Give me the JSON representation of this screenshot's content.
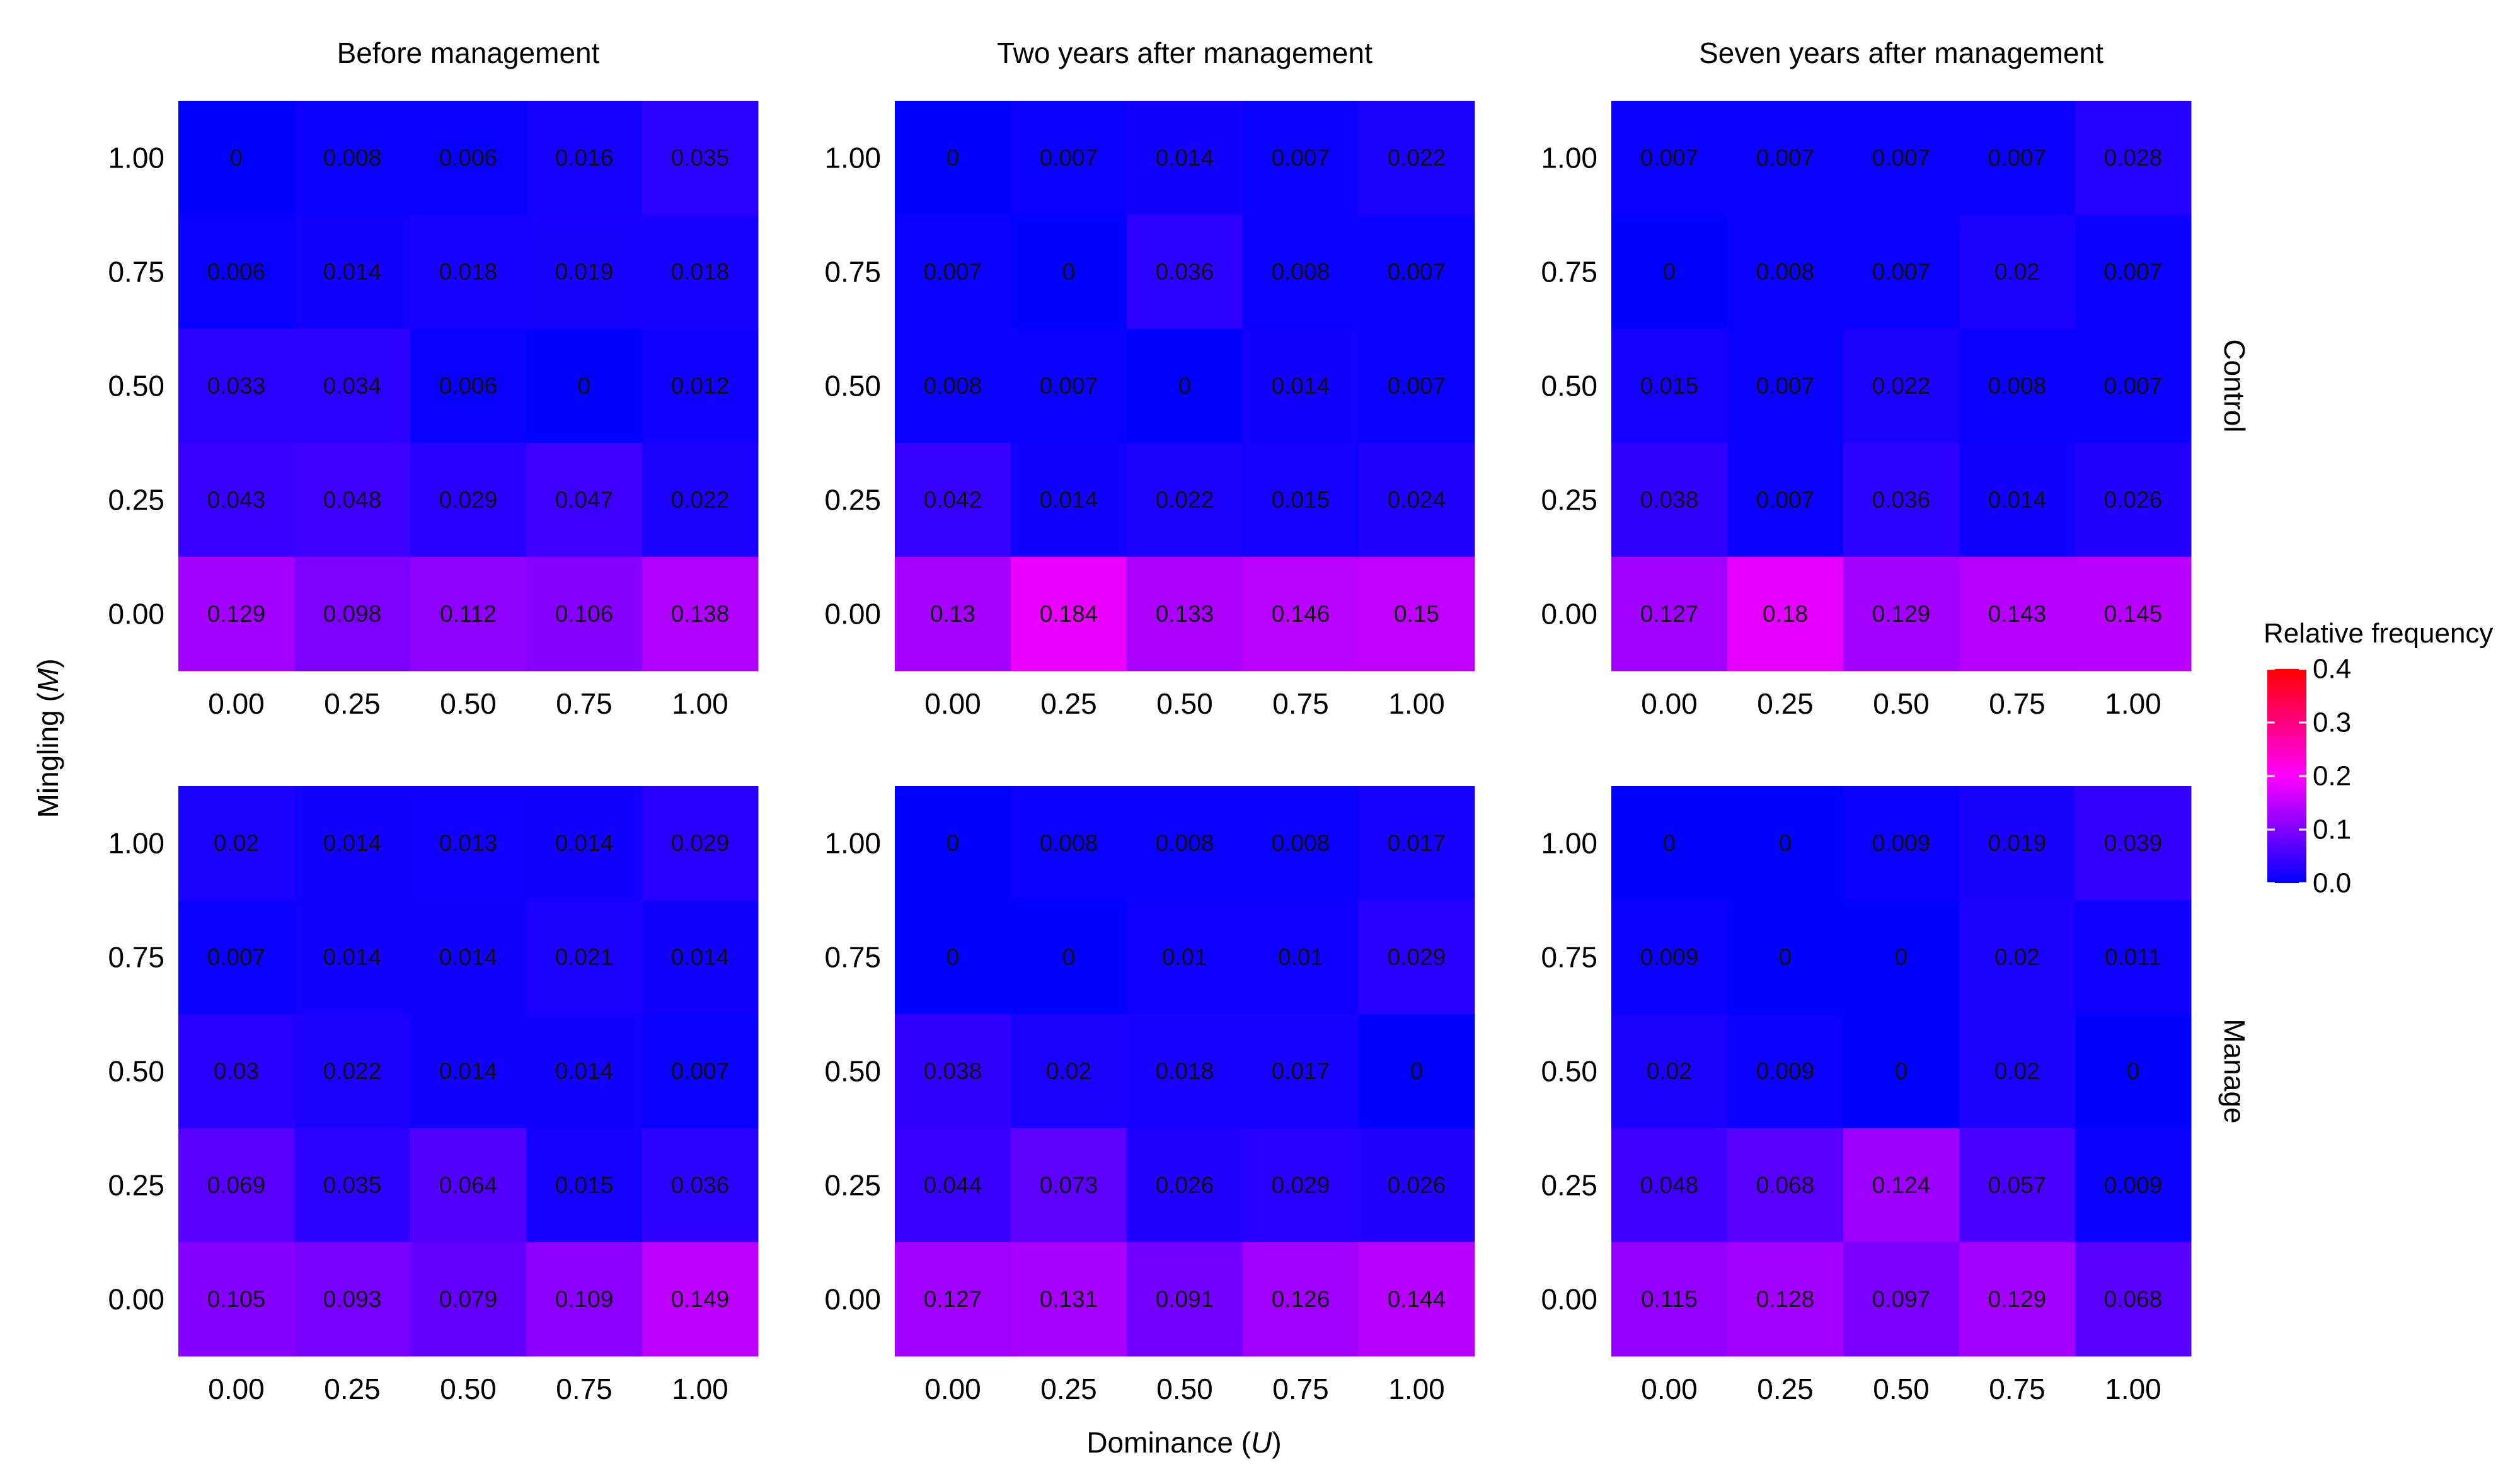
{
  "chart_data": {
    "type": "heatmap",
    "x": [
      0.0,
      0.25,
      0.5,
      0.75,
      1.0
    ],
    "y": [
      0.0,
      0.25,
      0.5,
      0.75,
      1.0
    ],
    "x_tick_labels": [
      "0.00",
      "0.25",
      "0.50",
      "0.75",
      "1.00"
    ],
    "y_tick_labels": [
      "0.00",
      "0.25",
      "0.50",
      "0.75",
      "1.00"
    ],
    "xlabel": "Dominance (U)",
    "ylabel": "Mingling (M)",
    "column_titles": [
      "Before management",
      "Two years after management",
      "Seven years after management"
    ],
    "row_titles": [
      "Control",
      "Manage"
    ],
    "colorbar": {
      "title": "Relative frequency",
      "range": [
        0.0,
        0.4
      ],
      "tick_labels": [
        "0.4",
        "0.3",
        "0.2",
        "0.1",
        "0.0"
      ],
      "tick_values": [
        0.4,
        0.3,
        0.2,
        0.1,
        0.0
      ],
      "low_color": "#0000ff",
      "high_color": "#ff0000"
    },
    "panels": [
      {
        "row": "Control",
        "column": "Before management",
        "values": [
          [
            "0",
            "0.008",
            "0.006",
            "0.016",
            "0.035"
          ],
          [
            "0.006",
            "0.014",
            "0.018",
            "0.019",
            "0.018"
          ],
          [
            "0.033",
            "0.034",
            "0.006",
            "0",
            "0.012"
          ],
          [
            "0.043",
            "0.048",
            "0.029",
            "0.047",
            "0.022"
          ],
          [
            "0.129",
            "0.098",
            "0.112",
            "0.106",
            "0.138"
          ]
        ]
      },
      {
        "row": "Control",
        "column": "Two years after management",
        "values": [
          [
            "0",
            "0.007",
            "0.014",
            "0.007",
            "0.022"
          ],
          [
            "0.007",
            "0",
            "0.036",
            "0.008",
            "0.007"
          ],
          [
            "0.008",
            "0.007",
            "0",
            "0.014",
            "0.007"
          ],
          [
            "0.042",
            "0.014",
            "0.022",
            "0.015",
            "0.024"
          ],
          [
            "0.13",
            "0.184",
            "0.133",
            "0.146",
            "0.15"
          ]
        ]
      },
      {
        "row": "Control",
        "column": "Seven years after management",
        "values": [
          [
            "0.007",
            "0.007",
            "0.007",
            "0.007",
            "0.028"
          ],
          [
            "0",
            "0.008",
            "0.007",
            "0.02",
            "0.007"
          ],
          [
            "0.015",
            "0.007",
            "0.022",
            "0.008",
            "0.007"
          ],
          [
            "0.038",
            "0.007",
            "0.036",
            "0.014",
            "0.026"
          ],
          [
            "0.127",
            "0.18",
            "0.129",
            "0.143",
            "0.145"
          ]
        ]
      },
      {
        "row": "Manage",
        "column": "Before management",
        "values": [
          [
            "0.02",
            "0.014",
            "0.013",
            "0.014",
            "0.029"
          ],
          [
            "0.007",
            "0.014",
            "0.014",
            "0.021",
            "0.014"
          ],
          [
            "0.03",
            "0.022",
            "0.014",
            "0.014",
            "0.007"
          ],
          [
            "0.069",
            "0.035",
            "0.064",
            "0.015",
            "0.036"
          ],
          [
            "0.105",
            "0.093",
            "0.079",
            "0.109",
            "0.149"
          ]
        ]
      },
      {
        "row": "Manage",
        "column": "Two years after management",
        "values": [
          [
            "0",
            "0.008",
            "0.008",
            "0.008",
            "0.017"
          ],
          [
            "0",
            "0",
            "0.01",
            "0.01",
            "0.029"
          ],
          [
            "0.038",
            "0.02",
            "0.018",
            "0.017",
            "0"
          ],
          [
            "0.044",
            "0.073",
            "0.026",
            "0.029",
            "0.026"
          ],
          [
            "0.127",
            "0.131",
            "0.091",
            "0.126",
            "0.144"
          ]
        ]
      },
      {
        "row": "Manage",
        "column": "Seven years after management",
        "values": [
          [
            "0",
            "0",
            "0.009",
            "0.019",
            "0.039"
          ],
          [
            "0.009",
            "0",
            "0",
            "0.02",
            "0.011"
          ],
          [
            "0.02",
            "0.009",
            "0",
            "0.02",
            "0"
          ],
          [
            "0.048",
            "0.068",
            "0.124",
            "0.057",
            "0.009"
          ],
          [
            "0.115",
            "0.128",
            "0.097",
            "0.129",
            "0.068"
          ]
        ]
      }
    ]
  }
}
